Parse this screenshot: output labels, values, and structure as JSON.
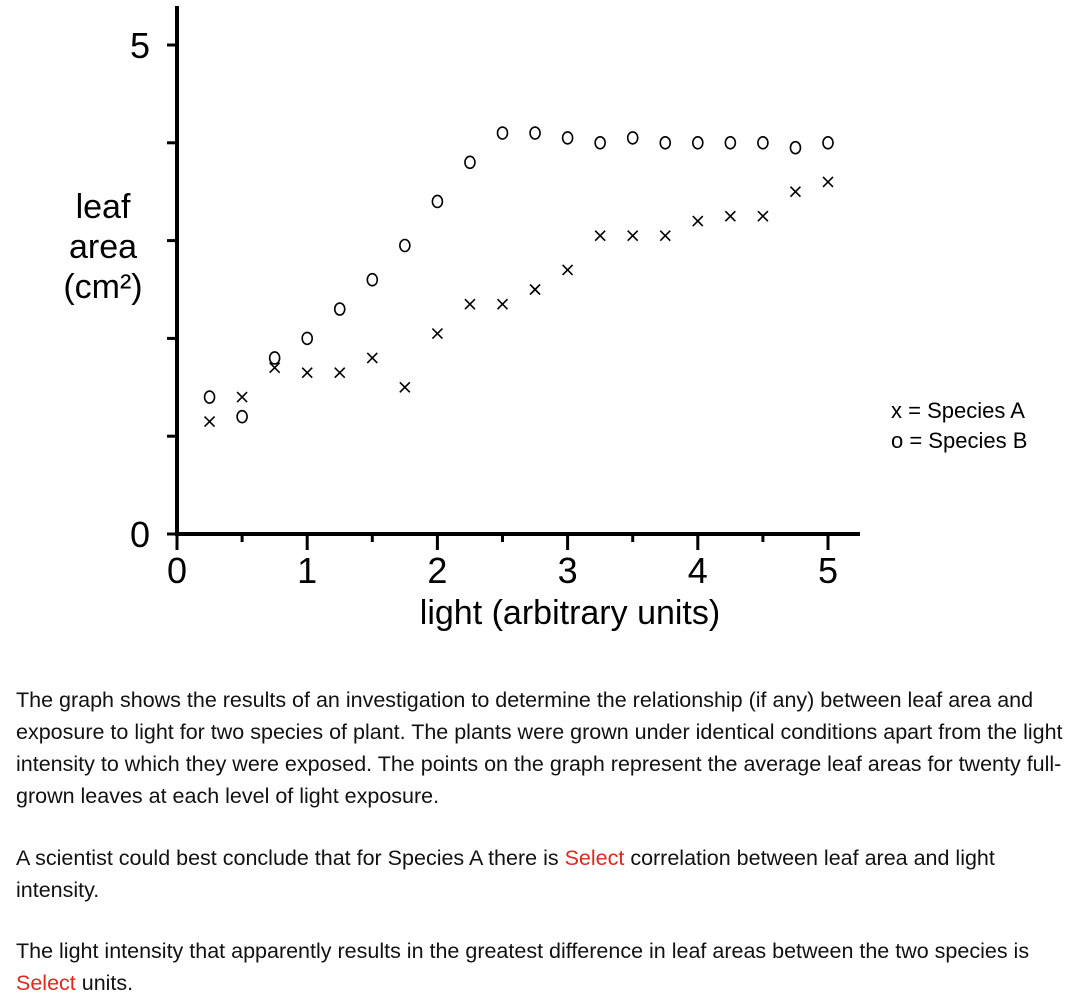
{
  "chart_data": {
    "type": "scatter",
    "title": "",
    "xlabel": "light (arbitrary units)",
    "ylabel": [
      "leaf",
      "area",
      "(cm²)"
    ],
    "xlim": [
      0,
      5
    ],
    "ylim": [
      0,
      5
    ],
    "x_ticks": [
      "0",
      "1",
      "2",
      "3",
      "4",
      "5"
    ],
    "y_ticks": [
      "0",
      "5"
    ],
    "legend": {
      "position": "right",
      "entries": [
        "x = Species A",
        "o = Species B"
      ]
    },
    "series": [
      {
        "name": "Species A",
        "marker": "x",
        "points": [
          [
            0.25,
            1.15
          ],
          [
            0.5,
            1.4
          ],
          [
            0.75,
            1.7
          ],
          [
            1.0,
            1.65
          ],
          [
            1.25,
            1.65
          ],
          [
            1.5,
            1.8
          ],
          [
            1.75,
            1.5
          ],
          [
            2.0,
            2.05
          ],
          [
            2.25,
            2.35
          ],
          [
            2.5,
            2.35
          ],
          [
            2.75,
            2.5
          ],
          [
            3.0,
            2.7
          ],
          [
            3.25,
            3.05
          ],
          [
            3.5,
            3.05
          ],
          [
            3.75,
            3.05
          ],
          [
            4.0,
            3.2
          ],
          [
            4.25,
            3.25
          ],
          [
            4.5,
            3.25
          ],
          [
            4.75,
            3.5
          ],
          [
            5.0,
            3.6
          ]
        ]
      },
      {
        "name": "Species B",
        "marker": "o",
        "points": [
          [
            0.25,
            1.4
          ],
          [
            0.5,
            1.2
          ],
          [
            0.75,
            1.8
          ],
          [
            1.0,
            2.0
          ],
          [
            1.25,
            2.3
          ],
          [
            1.5,
            2.6
          ],
          [
            1.75,
            2.95
          ],
          [
            2.0,
            3.4
          ],
          [
            2.25,
            3.8
          ],
          [
            2.5,
            4.1
          ],
          [
            2.75,
            4.1
          ],
          [
            3.0,
            4.05
          ],
          [
            3.25,
            4.0
          ],
          [
            3.5,
            4.05
          ],
          [
            3.75,
            4.0
          ],
          [
            4.0,
            4.0
          ],
          [
            4.25,
            4.0
          ],
          [
            4.5,
            4.0
          ],
          [
            4.75,
            3.95
          ],
          [
            5.0,
            4.0
          ]
        ]
      }
    ]
  },
  "questions": {
    "intro": "The graph shows the results of an investigation to determine the relationship (if any) between leaf area and exposure to light for two species of plant. The plants were grown under identical conditions apart from the light intensity to which they were exposed. The points on the graph represent the average leaf areas for twenty full-grown leaves at each level of light exposure.",
    "q1_before": "A scientist could best conclude that for Species A there is ",
    "q1_select": "Select",
    "q1_after": " correlation between leaf area and light intensity.",
    "q2_before": "The light intensity that apparently results in the greatest difference in leaf areas between the two species is ",
    "q2_select": "Select",
    "q2_after": " units."
  }
}
